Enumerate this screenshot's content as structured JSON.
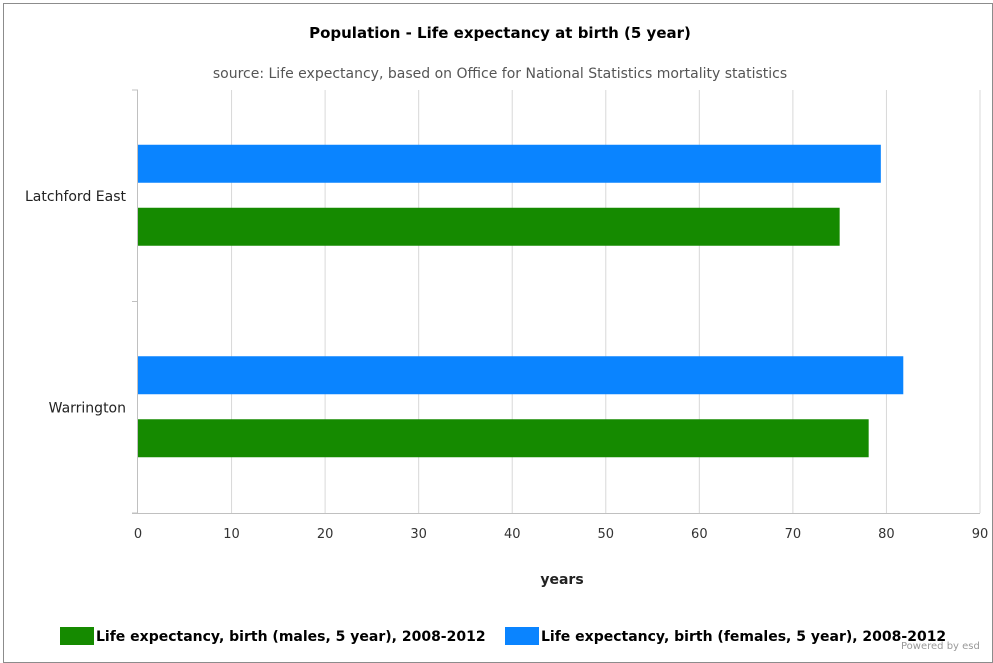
{
  "chart_data": {
    "type": "bar",
    "orientation": "horizontal",
    "title": "Population - Life expectancy at birth (5 year)",
    "subtitle": "source: Life expectancy, based on Office for National Statistics mortality statistics",
    "xlabel": "years",
    "categories": [
      "Latchford East",
      "Warrington"
    ],
    "series": [
      {
        "name": "Life expectancy, birth (males, 5 year), 2008-2012",
        "color": "#158a00",
        "values": [
          75.0,
          78.1
        ]
      },
      {
        "name": "Life expectancy, birth (females, 5 year), 2008-2012",
        "color": "#0a84ff",
        "values": [
          79.4,
          81.8
        ]
      }
    ],
    "xlim": [
      0,
      90
    ],
    "xticks": [
      "0",
      "10",
      "20",
      "30",
      "40",
      "50",
      "60",
      "70",
      "80",
      "90"
    ],
    "grid": true,
    "legend_position": "bottom"
  },
  "footer": {
    "credit": "Powered by esd"
  }
}
